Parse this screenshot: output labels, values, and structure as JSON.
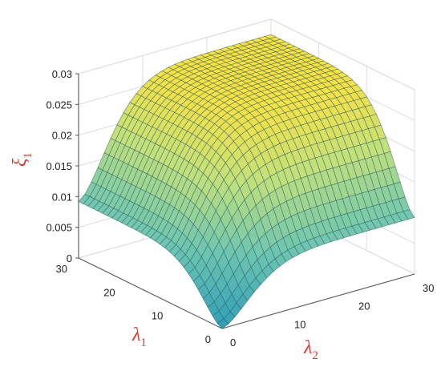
{
  "chart_data": {
    "type": "surface",
    "title": "",
    "xlabel": {
      "symbol": "λ",
      "sub": "1"
    },
    "ylabel": {
      "symbol": "λ",
      "sub": "2"
    },
    "zlabel": {
      "symbol": "ξ",
      "sub": "1"
    },
    "xlim": [
      0,
      30
    ],
    "ylim": [
      0,
      30
    ],
    "zlim": [
      0,
      0.03
    ],
    "x_ticks": [
      "0",
      "10",
      "20",
      "30"
    ],
    "y_ticks": [
      "0",
      "10",
      "20",
      "30"
    ],
    "z_ticks": [
      "0",
      "0.005",
      "0.01",
      "0.015",
      "0.02",
      "0.025",
      "0.03"
    ],
    "grid": true,
    "colormap": [
      "#2f9fb8",
      "#6fc6b0",
      "#c2e07a",
      "#ffe23a"
    ],
    "surface_samples": [
      {
        "lambda1": 0,
        "lambda2": 0,
        "xi1": 0.0
      },
      {
        "lambda1": 0,
        "lambda2": 30,
        "xi1": 0.0092
      },
      {
        "lambda1": 30,
        "lambda2": 0,
        "xi1": 0.0092
      },
      {
        "lambda1": 30,
        "lambda2": 30,
        "xi1": 0.0275
      },
      {
        "lambda1": 15,
        "lambda2": 15,
        "xi1": 0.024
      },
      {
        "lambda1": 5,
        "lambda2": 5,
        "xi1": 0.006
      }
    ]
  }
}
